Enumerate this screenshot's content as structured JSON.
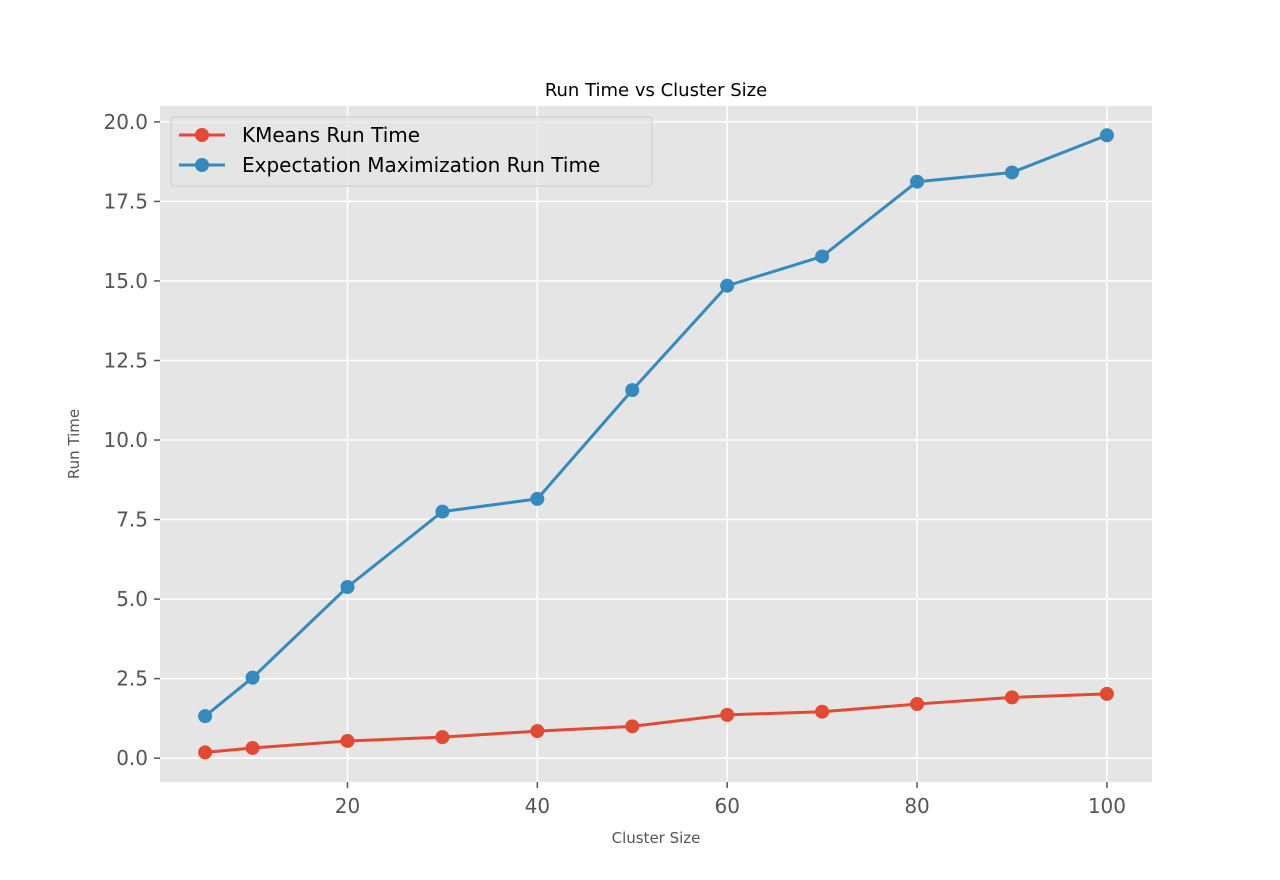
{
  "chart_data": {
    "type": "line",
    "title": "Run Time vs Cluster Size",
    "xlabel": "Cluster Size",
    "ylabel": "Run Time",
    "xlim": [
      0.25,
      104.75
    ],
    "ylim": [
      -0.75,
      20.5
    ],
    "xticks": [
      20,
      40,
      60,
      80,
      100
    ],
    "yticks": [
      0.0,
      2.5,
      5.0,
      7.5,
      10.0,
      12.5,
      15.0,
      17.5,
      20.0
    ],
    "grid": true,
    "legend_position": "upper-left",
    "x": [
      5,
      10,
      20,
      30,
      40,
      50,
      60,
      70,
      80,
      90,
      100
    ],
    "series": [
      {
        "name": "KMeans Run Time",
        "color": "#E24A33",
        "marker": "circle",
        "values": [
          0.18,
          0.32,
          0.54,
          0.66,
          0.85,
          1.0,
          1.36,
          1.46,
          1.7,
          1.91,
          2.02
        ]
      },
      {
        "name": "Expectation Maximization Run Time",
        "color": "#348ABD",
        "marker": "circle",
        "values": [
          1.32,
          2.53,
          5.38,
          7.75,
          8.15,
          11.57,
          14.85,
          15.77,
          18.12,
          18.41,
          19.58
        ]
      }
    ]
  },
  "colors": {
    "plot_background": "#E5E5E5",
    "grid": "#FFFFFF",
    "tick_text": "#555555"
  }
}
